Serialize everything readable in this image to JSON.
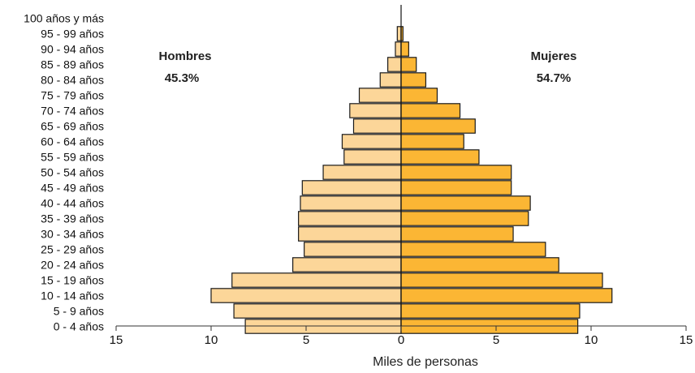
{
  "chart_data": {
    "type": "bar",
    "orientation": "horizontal",
    "subtype": "population-pyramid",
    "categories": [
      "0 - 4 años",
      "5 - 9 años",
      "10 - 14 años",
      "15 - 19 años",
      "20 - 24 años",
      "25 - 29 años",
      "30 - 34 años",
      "35 - 39 años",
      "40 - 44 años",
      "45 - 49 años",
      "50 - 54 años",
      "55 - 59 años",
      "60 - 64 años",
      "65 - 69 años",
      "70 - 74 años",
      "75 - 79 años",
      "80 - 84 años",
      "85 - 89 años",
      "90 - 94 años",
      "95 - 99 años",
      "100 años y más"
    ],
    "series": [
      {
        "name": "Hombres",
        "share": "45.3%",
        "color": "#fcd699",
        "side": "left",
        "values": [
          8.2,
          8.8,
          10.0,
          8.9,
          5.7,
          5.1,
          5.4,
          5.4,
          5.3,
          5.2,
          4.1,
          3.0,
          3.1,
          2.5,
          2.7,
          2.2,
          1.1,
          0.7,
          0.3,
          0.2,
          0.0
        ]
      },
      {
        "name": "Mujeres",
        "share": "54.7%",
        "color": "#fbb634",
        "side": "right",
        "values": [
          9.3,
          9.4,
          11.1,
          10.6,
          8.3,
          7.6,
          5.9,
          6.7,
          6.8,
          5.8,
          5.8,
          4.1,
          3.3,
          3.9,
          3.1,
          1.9,
          1.3,
          0.8,
          0.4,
          0.1,
          0.0
        ]
      }
    ],
    "xlabel": "Miles de personas",
    "xlim": [
      -15,
      15
    ],
    "xticks": [
      -15,
      -10,
      -5,
      0,
      5,
      10,
      15
    ],
    "xtick_labels": [
      "15",
      "10",
      "5",
      "0",
      "5",
      "10",
      "15"
    ],
    "grid": false,
    "legend": "inline labels top-left and top-right"
  }
}
